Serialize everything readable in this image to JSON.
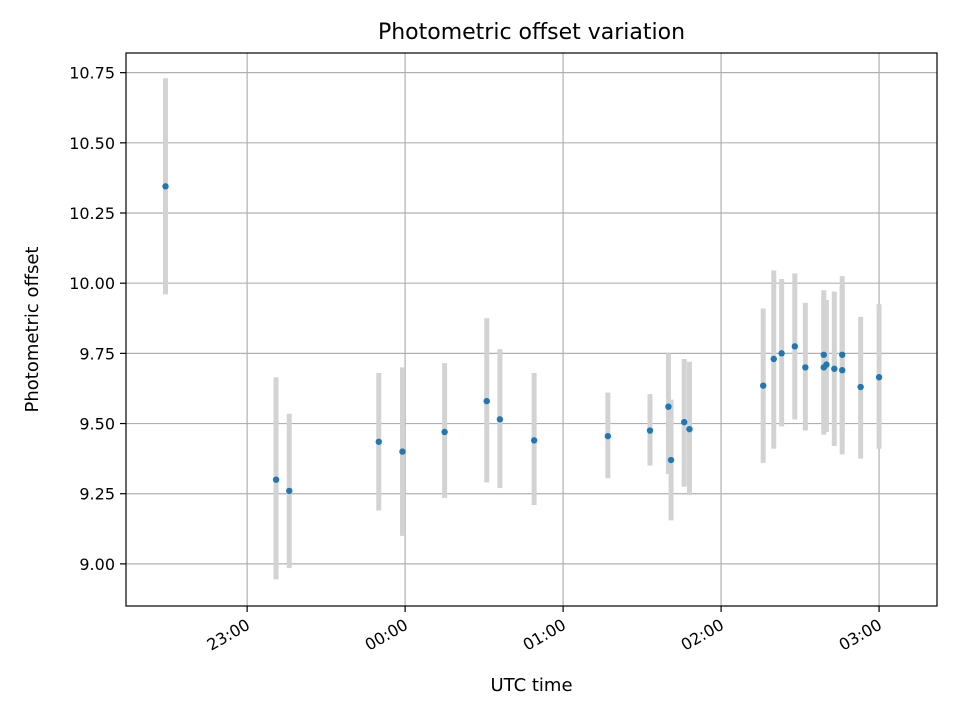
{
  "chart_data": {
    "type": "scatter",
    "title": "Photometric offset variation",
    "xlabel": "UTC time",
    "ylabel": "Photometric offset",
    "x_scale": "time",
    "xlim": [
      "22:14",
      "03:22"
    ],
    "ylim": [
      8.85,
      10.82
    ],
    "x_ticks": [
      "23:00",
      "00:00",
      "01:00",
      "02:00",
      "03:00"
    ],
    "y_ticks": [
      "9.00",
      "9.25",
      "9.50",
      "9.75",
      "10.00",
      "10.25",
      "10.50",
      "10.75"
    ],
    "grid": true,
    "colors": {
      "point": "#1f77b4",
      "errorbar": "#d3d3d3",
      "grid": "#b0b0b0"
    },
    "points": [
      {
        "t": "22:29",
        "y": 10.345,
        "lo": 9.96,
        "hi": 10.73
      },
      {
        "t": "23:11",
        "y": 9.3,
        "lo": 8.945,
        "hi": 9.665
      },
      {
        "t": "23:16",
        "y": 9.26,
        "lo": 8.985,
        "hi": 9.535
      },
      {
        "t": "23:50",
        "y": 9.435,
        "lo": 9.19,
        "hi": 9.68
      },
      {
        "t": "23:59",
        "y": 9.4,
        "lo": 9.1,
        "hi": 9.7
      },
      {
        "t": "00:15",
        "y": 9.47,
        "lo": 9.235,
        "hi": 9.715
      },
      {
        "t": "00:31",
        "y": 9.58,
        "lo": 9.29,
        "hi": 9.875
      },
      {
        "t": "00:36",
        "y": 9.515,
        "lo": 9.27,
        "hi": 9.765
      },
      {
        "t": "00:49",
        "y": 9.44,
        "lo": 9.21,
        "hi": 9.68
      },
      {
        "t": "01:17",
        "y": 9.455,
        "lo": 9.305,
        "hi": 9.61
      },
      {
        "t": "01:33",
        "y": 9.475,
        "lo": 9.35,
        "hi": 9.605
      },
      {
        "t": "01:40",
        "y": 9.56,
        "lo": 9.32,
        "hi": 9.75
      },
      {
        "t": "01:41",
        "y": 9.37,
        "lo": 9.155,
        "hi": 9.585
      },
      {
        "t": "01:46",
        "y": 9.505,
        "lo": 9.275,
        "hi": 9.73
      },
      {
        "t": "01:48",
        "y": 9.48,
        "lo": 9.245,
        "hi": 9.72
      },
      {
        "t": "02:16",
        "y": 9.635,
        "lo": 9.36,
        "hi": 9.91
      },
      {
        "t": "02:20",
        "y": 9.73,
        "lo": 9.41,
        "hi": 10.045
      },
      {
        "t": "02:23",
        "y": 9.75,
        "lo": 9.49,
        "hi": 10.015
      },
      {
        "t": "02:28",
        "y": 9.775,
        "lo": 9.515,
        "hi": 10.035
      },
      {
        "t": "02:32",
        "y": 9.7,
        "lo": 9.475,
        "hi": 9.93
      },
      {
        "t": "02:39",
        "y": 9.745,
        "lo": 9.51,
        "hi": 9.975
      },
      {
        "t": "02:39",
        "y": 9.7,
        "lo": 9.46,
        "hi": 9.955
      },
      {
        "t": "02:40",
        "y": 9.71,
        "lo": 9.47,
        "hi": 9.94
      },
      {
        "t": "02:43",
        "y": 9.695,
        "lo": 9.42,
        "hi": 9.97
      },
      {
        "t": "02:46",
        "y": 9.745,
        "lo": 9.46,
        "hi": 10.025
      },
      {
        "t": "02:46",
        "y": 9.69,
        "lo": 9.39,
        "hi": 9.99
      },
      {
        "t": "02:53",
        "y": 9.63,
        "lo": 9.375,
        "hi": 9.88
      },
      {
        "t": "03:00",
        "y": 9.665,
        "lo": 9.41,
        "hi": 9.925
      }
    ]
  }
}
